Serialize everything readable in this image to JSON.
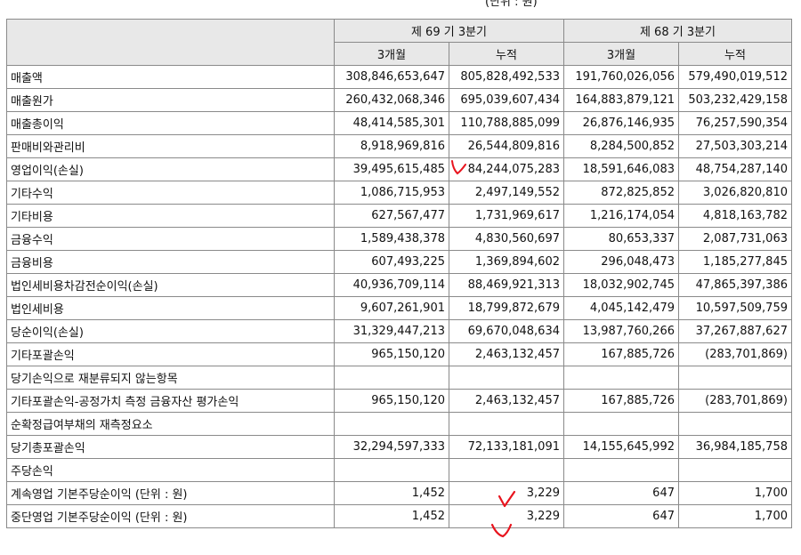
{
  "unit_note": "(단위 : 원)",
  "header": {
    "period_current": "제 69 기 3분기",
    "period_prior": "제 68 기 3분기",
    "col_3m_cur": "3개월",
    "col_cum_cur": "누적",
    "col_3m_prior": "3개월",
    "col_cum_prior": "누적"
  },
  "rows": [
    {
      "label": "매출액",
      "v": [
        "308,846,653,647",
        "805,828,492,533",
        "191,760,026,056",
        "579,490,019,512"
      ]
    },
    {
      "label": "매출원가",
      "v": [
        "260,432,068,346",
        "695,039,607,434",
        "164,883,879,121",
        "503,232,429,158"
      ]
    },
    {
      "label": "매출총이익",
      "v": [
        "48,414,585,301",
        "110,788,885,099",
        "26,876,146,935",
        "76,257,590,354"
      ]
    },
    {
      "label": "판매비와관리비",
      "v": [
        "8,918,969,816",
        "26,544,809,816",
        "8,284,500,852",
        "27,503,303,214"
      ]
    },
    {
      "label": "영업이익(손실)",
      "v": [
        "39,495,615,485",
        "84,244,075,283",
        "18,591,646,083",
        "48,754,287,140"
      ]
    },
    {
      "label": "기타수익",
      "v": [
        "1,086,715,953",
        "2,497,149,552",
        "872,825,852",
        "3,026,820,810"
      ]
    },
    {
      "label": "기타비용",
      "v": [
        "627,567,477",
        "1,731,969,617",
        "1,216,174,054",
        "4,818,163,782"
      ]
    },
    {
      "label": "금융수익",
      "v": [
        "1,589,438,378",
        "4,830,560,697",
        "80,653,337",
        "2,087,731,063"
      ]
    },
    {
      "label": "금융비용",
      "v": [
        "607,493,225",
        "1,369,894,602",
        "296,048,473",
        "1,185,277,845"
      ]
    },
    {
      "label": "법인세비용차감전순이익(손실)",
      "v": [
        "40,936,709,114",
        "88,469,921,313",
        "18,032,902,745",
        "47,865,397,386"
      ]
    },
    {
      "label": "법인세비용",
      "v": [
        "9,607,261,901",
        "18,799,872,679",
        "4,045,142,479",
        "10,597,509,759"
      ]
    },
    {
      "label": "당순이익(손실)",
      "v": [
        "31,329,447,213",
        "69,670,048,634",
        "13,987,760,266",
        "37,267,887,627"
      ]
    },
    {
      "label": "기타포괄손익",
      "v": [
        "965,150,120",
        "2,463,132,457",
        "167,885,726",
        "(283,701,869)"
      ]
    },
    {
      "label": "당기손익으로 재분류되지 않는항목",
      "v": [
        "",
        "",
        "",
        ""
      ]
    },
    {
      "label": "기타포괄손익-공정가치 측정 금융자산 평가손익",
      "v": [
        "965,150,120",
        "2,463,132,457",
        "167,885,726",
        "(283,701,869)"
      ]
    },
    {
      "label": "순확정급여부채의 재측정요소",
      "v": [
        "",
        "",
        "",
        ""
      ]
    },
    {
      "label": "당기총포괄손익",
      "v": [
        "32,294,597,333",
        "72,133,181,091",
        "14,155,645,992",
        "36,984,185,758"
      ]
    },
    {
      "label": "주당손익",
      "v": [
        "",
        "",
        "",
        ""
      ]
    },
    {
      "label": "계속영업 기본주당순이익 (단위 : 원)",
      "v": [
        "1,452",
        "3,229",
        "647",
        "1,700"
      ]
    },
    {
      "label": "중단영업 기본주당순이익 (단위 : 원)",
      "v": [
        "1,452",
        "3,229",
        "647",
        "1,700"
      ]
    }
  ],
  "annotation_color": "#e8141e"
}
